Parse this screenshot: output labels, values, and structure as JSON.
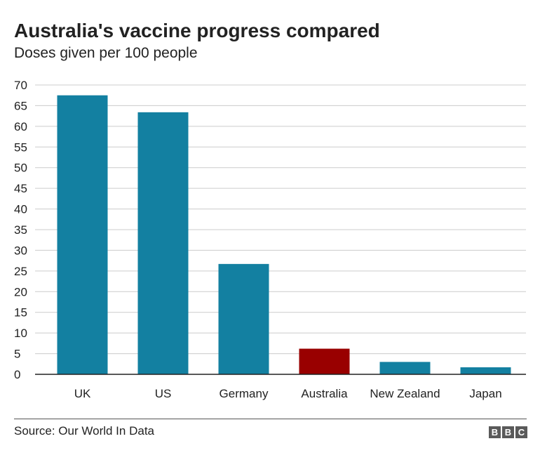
{
  "header": {
    "title": "Australia's vaccine progress compared",
    "subtitle": "Doses given per 100 people"
  },
  "footer": {
    "source": "Source: Our World In Data",
    "logo_letters": [
      "B",
      "B",
      "C"
    ]
  },
  "colors": {
    "bar": "#1380A1",
    "highlight": "#990000",
    "grid": "#cccccc",
    "axis": "#222222"
  },
  "chart_data": {
    "type": "bar",
    "title": "Australia's vaccine progress compared",
    "subtitle": "Doses given per 100 people",
    "xlabel": "",
    "ylabel": "",
    "categories": [
      "UK",
      "US",
      "Germany",
      "Australia",
      "New Zealand",
      "Japan"
    ],
    "values": [
      67.5,
      63.4,
      26.7,
      6.2,
      3.0,
      1.7
    ],
    "highlight_category": "Australia",
    "ylim": [
      0,
      70
    ],
    "yticks": [
      0,
      5,
      10,
      15,
      20,
      25,
      30,
      35,
      40,
      45,
      50,
      55,
      60,
      65,
      70
    ],
    "grid": true,
    "legend": "none"
  }
}
